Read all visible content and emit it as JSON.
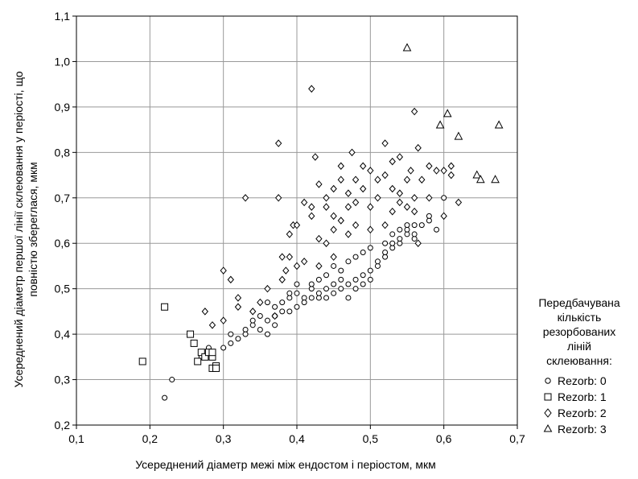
{
  "chart_data": {
    "type": "scatter",
    "xlabel": "Усереднений діаметр межі між ендостом і періостом, мкм",
    "ylabel_lines": [
      "Усереднений діаметр першої лінії склеювання у періості, що",
      "повністю збереглася, мкм"
    ],
    "xlim": [
      0.1,
      0.7
    ],
    "ylim": [
      0.2,
      1.1
    ],
    "xticks": [
      "0,1",
      "0,2",
      "0,3",
      "0,4",
      "0,5",
      "0,6",
      "0,7"
    ],
    "yticks": [
      "0,2",
      "0,3",
      "0,4",
      "0,5",
      "0,6",
      "0,7",
      "0,8",
      "0,9",
      "1,0",
      "1,1"
    ],
    "grid": true,
    "legend": {
      "placement": "right",
      "title_lines": [
        "Передбачувана",
        "кількість",
        "резорбованих",
        "ліній",
        "склеювання:"
      ],
      "entries": [
        "Rezorb: 0",
        "Rezorb: 1",
        "Rezorb: 2",
        "Rezorb: 3"
      ]
    },
    "series": [
      {
        "name": "Rezorb: 0",
        "marker": "circle",
        "points": [
          [
            0.22,
            0.26
          ],
          [
            0.23,
            0.3
          ],
          [
            0.27,
            0.35
          ],
          [
            0.28,
            0.37
          ],
          [
            0.3,
            0.37
          ],
          [
            0.31,
            0.38
          ],
          [
            0.31,
            0.4
          ],
          [
            0.32,
            0.39
          ],
          [
            0.33,
            0.41
          ],
          [
            0.33,
            0.4
          ],
          [
            0.34,
            0.42
          ],
          [
            0.34,
            0.43
          ],
          [
            0.35,
            0.41
          ],
          [
            0.35,
            0.44
          ],
          [
            0.36,
            0.43
          ],
          [
            0.36,
            0.4
          ],
          [
            0.37,
            0.44
          ],
          [
            0.37,
            0.42
          ],
          [
            0.38,
            0.45
          ],
          [
            0.38,
            0.47
          ],
          [
            0.39,
            0.45
          ],
          [
            0.39,
            0.48
          ],
          [
            0.4,
            0.46
          ],
          [
            0.4,
            0.49
          ],
          [
            0.41,
            0.48
          ],
          [
            0.41,
            0.47
          ],
          [
            0.42,
            0.48
          ],
          [
            0.42,
            0.5
          ],
          [
            0.43,
            0.48
          ],
          [
            0.43,
            0.49
          ],
          [
            0.44,
            0.5
          ],
          [
            0.44,
            0.48
          ],
          [
            0.45,
            0.51
          ],
          [
            0.45,
            0.49
          ],
          [
            0.46,
            0.5
          ],
          [
            0.46,
            0.52
          ],
          [
            0.47,
            0.51
          ],
          [
            0.47,
            0.48
          ],
          [
            0.48,
            0.52
          ],
          [
            0.48,
            0.5
          ],
          [
            0.49,
            0.53
          ],
          [
            0.49,
            0.51
          ],
          [
            0.5,
            0.54
          ],
          [
            0.5,
            0.52
          ],
          [
            0.51,
            0.55
          ],
          [
            0.51,
            0.56
          ],
          [
            0.52,
            0.57
          ],
          [
            0.52,
            0.58
          ],
          [
            0.53,
            0.59
          ],
          [
            0.53,
            0.6
          ],
          [
            0.54,
            0.6
          ],
          [
            0.54,
            0.61
          ],
          [
            0.55,
            0.62
          ],
          [
            0.55,
            0.63
          ],
          [
            0.56,
            0.61
          ],
          [
            0.56,
            0.64
          ],
          [
            0.56,
            0.62
          ],
          [
            0.57,
            0.64
          ],
          [
            0.58,
            0.65
          ],
          [
            0.58,
            0.66
          ],
          [
            0.59,
            0.63
          ],
          [
            0.6,
            0.7
          ],
          [
            0.36,
            0.47
          ],
          [
            0.37,
            0.46
          ],
          [
            0.39,
            0.49
          ],
          [
            0.4,
            0.51
          ],
          [
            0.42,
            0.51
          ],
          [
            0.43,
            0.52
          ],
          [
            0.44,
            0.53
          ],
          [
            0.45,
            0.55
          ],
          [
            0.46,
            0.54
          ],
          [
            0.47,
            0.56
          ],
          [
            0.48,
            0.57
          ],
          [
            0.49,
            0.58
          ],
          [
            0.5,
            0.59
          ],
          [
            0.52,
            0.6
          ],
          [
            0.53,
            0.62
          ],
          [
            0.54,
            0.63
          ],
          [
            0.55,
            0.64
          ]
        ]
      },
      {
        "name": "Rezorb: 1",
        "marker": "square",
        "points": [
          [
            0.19,
            0.34
          ],
          [
            0.22,
            0.46
          ],
          [
            0.255,
            0.4
          ],
          [
            0.26,
            0.38
          ],
          [
            0.265,
            0.34
          ],
          [
            0.27,
            0.36
          ],
          [
            0.275,
            0.35
          ],
          [
            0.28,
            0.36
          ],
          [
            0.285,
            0.35
          ],
          [
            0.285,
            0.36
          ],
          [
            0.285,
            0.325
          ],
          [
            0.29,
            0.33
          ],
          [
            0.29,
            0.325
          ]
        ]
      },
      {
        "name": "Rezorb: 2",
        "marker": "diamond",
        "points": [
          [
            0.275,
            0.45
          ],
          [
            0.285,
            0.42
          ],
          [
            0.3,
            0.43
          ],
          [
            0.3,
            0.54
          ],
          [
            0.31,
            0.52
          ],
          [
            0.32,
            0.46
          ],
          [
            0.32,
            0.48
          ],
          [
            0.33,
            0.7
          ],
          [
            0.34,
            0.45
          ],
          [
            0.35,
            0.47
          ],
          [
            0.36,
            0.5
          ],
          [
            0.37,
            0.44
          ],
          [
            0.375,
            0.7
          ],
          [
            0.375,
            0.82
          ],
          [
            0.38,
            0.52
          ],
          [
            0.38,
            0.57
          ],
          [
            0.385,
            0.54
          ],
          [
            0.39,
            0.57
          ],
          [
            0.39,
            0.62
          ],
          [
            0.395,
            0.64
          ],
          [
            0.4,
            0.55
          ],
          [
            0.4,
            0.64
          ],
          [
            0.41,
            0.56
          ],
          [
            0.41,
            0.69
          ],
          [
            0.42,
            0.94
          ],
          [
            0.42,
            0.66
          ],
          [
            0.42,
            0.68
          ],
          [
            0.425,
            0.79
          ],
          [
            0.43,
            0.55
          ],
          [
            0.43,
            0.61
          ],
          [
            0.43,
            0.73
          ],
          [
            0.44,
            0.6
          ],
          [
            0.44,
            0.68
          ],
          [
            0.44,
            0.7
          ],
          [
            0.45,
            0.57
          ],
          [
            0.45,
            0.63
          ],
          [
            0.45,
            0.66
          ],
          [
            0.45,
            0.72
          ],
          [
            0.46,
            0.65
          ],
          [
            0.46,
            0.74
          ],
          [
            0.46,
            0.77
          ],
          [
            0.47,
            0.62
          ],
          [
            0.47,
            0.68
          ],
          [
            0.47,
            0.71
          ],
          [
            0.475,
            0.8
          ],
          [
            0.48,
            0.64
          ],
          [
            0.48,
            0.69
          ],
          [
            0.48,
            0.74
          ],
          [
            0.49,
            0.72
          ],
          [
            0.49,
            0.77
          ],
          [
            0.5,
            0.63
          ],
          [
            0.5,
            0.68
          ],
          [
            0.5,
            0.76
          ],
          [
            0.51,
            0.7
          ],
          [
            0.51,
            0.74
          ],
          [
            0.52,
            0.64
          ],
          [
            0.52,
            0.75
          ],
          [
            0.52,
            0.82
          ],
          [
            0.53,
            0.67
          ],
          [
            0.53,
            0.72
          ],
          [
            0.53,
            0.78
          ],
          [
            0.54,
            0.69
          ],
          [
            0.54,
            0.71
          ],
          [
            0.54,
            0.79
          ],
          [
            0.55,
            0.68
          ],
          [
            0.55,
            0.74
          ],
          [
            0.555,
            0.76
          ],
          [
            0.56,
            0.67
          ],
          [
            0.56,
            0.7
          ],
          [
            0.56,
            0.89
          ],
          [
            0.565,
            0.81
          ],
          [
            0.565,
            0.6
          ],
          [
            0.57,
            0.74
          ],
          [
            0.58,
            0.7
          ],
          [
            0.58,
            0.77
          ],
          [
            0.59,
            0.76
          ],
          [
            0.6,
            0.76
          ],
          [
            0.6,
            0.66
          ],
          [
            0.61,
            0.77
          ],
          [
            0.61,
            0.75
          ],
          [
            0.62,
            0.69
          ]
        ]
      },
      {
        "name": "Rezorb: 3",
        "marker": "triangle",
        "points": [
          [
            0.55,
            1.03
          ],
          [
            0.595,
            0.86
          ],
          [
            0.605,
            0.885
          ],
          [
            0.62,
            0.835
          ],
          [
            0.645,
            0.75
          ],
          [
            0.65,
            0.74
          ],
          [
            0.67,
            0.74
          ],
          [
            0.675,
            0.86
          ]
        ]
      }
    ]
  }
}
